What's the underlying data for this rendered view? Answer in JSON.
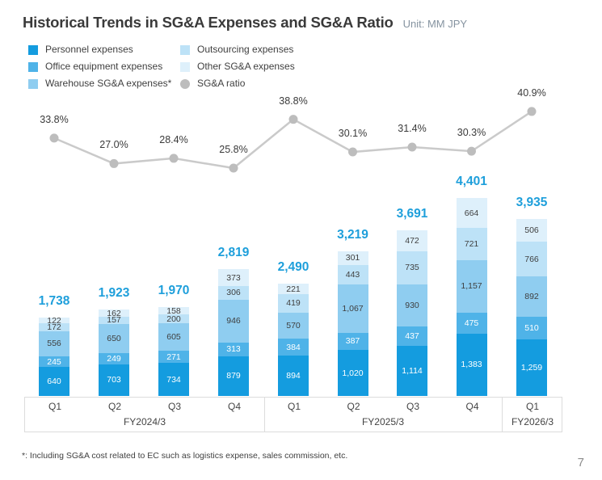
{
  "title": "Historical Trends in SG&A Expenses and SG&A Ratio",
  "unit_label": "Unit: MM JPY",
  "footnote": "*: Including SG&A cost related to EC such as logistics expense, sales commission, etc.",
  "page_number": "7",
  "colors": {
    "title_text": "#3A3A3A",
    "unit_text": "#8593A0",
    "total_label": "#1E9FDB",
    "axis_border": "#DCDCDC",
    "segment_dark_text": "#3F3F3F"
  },
  "legend": {
    "columns": [
      [
        {
          "label": "Personnel expenses",
          "color": "#149CDF",
          "shape": "square"
        },
        {
          "label": "Office equipment expenses",
          "color": "#4FB3E8",
          "shape": "square"
        },
        {
          "label": "Warehouse SG&A expenses*",
          "color": "#8FCDF0",
          "shape": "square"
        }
      ],
      [
        {
          "label": "Outsourcing expenses",
          "color": "#BDE2F7",
          "shape": "square"
        },
        {
          "label": "Other SG&A expenses",
          "color": "#DEF0FB",
          "shape": "square"
        },
        {
          "label": "SG&A ratio",
          "color": "#BDBDBD",
          "shape": "circle"
        }
      ]
    ]
  },
  "chart_data": {
    "type": "bar",
    "subtype": "stacked-bar-with-ratio-line",
    "title": "Historical Trends in SG&A Expenses and SG&A Ratio",
    "unit": "MM JPY",
    "legend_position": "top-left",
    "grid": false,
    "categories": [
      "Q1",
      "Q2",
      "Q3",
      "Q4",
      "Q1",
      "Q2",
      "Q3",
      "Q4",
      "Q1"
    ],
    "groups": [
      {
        "label": "FY2024/3",
        "span": 4
      },
      {
        "label": "FY2025/3",
        "span": 4
      },
      {
        "label": "FY2026/3",
        "span": 1
      }
    ],
    "series": [
      {
        "name": "Personnel expenses",
        "color": "#149CDF",
        "label_color": "#FFFFFF",
        "values": [
          640,
          703,
          734,
          879,
          894,
          1020,
          1114,
          1383,
          1259
        ]
      },
      {
        "name": "Office equipment expenses",
        "color": "#4FB3E8",
        "label_color": "#FFFFFF",
        "values": [
          245,
          249,
          271,
          313,
          384,
          387,
          437,
          475,
          510
        ]
      },
      {
        "name": "Warehouse SG&A expenses*",
        "color": "#8FCDF0",
        "label_color": "#3F3F3F",
        "values": [
          556,
          650,
          605,
          946,
          570,
          1067,
          930,
          1157,
          892
        ]
      },
      {
        "name": "Outsourcing expenses",
        "color": "#BDE2F7",
        "label_color": "#3F3F3F",
        "values": [
          172,
          157,
          200,
          306,
          419,
          443,
          735,
          721,
          766
        ]
      },
      {
        "name": "Other SG&A expenses",
        "color": "#DEF0FB",
        "label_color": "#3F3F3F",
        "values": [
          122,
          162,
          158,
          373,
          221,
          301,
          472,
          664,
          506
        ]
      }
    ],
    "totals": [
      1738,
      1923,
      1970,
      2819,
      2490,
      3219,
      3691,
      4401,
      3935
    ],
    "ratio_series": {
      "name": "SG&A ratio",
      "marker_color": "#BDBDBD",
      "line_color": "#CACACA",
      "values": [
        33.8,
        27.0,
        28.4,
        25.8,
        38.8,
        30.1,
        31.4,
        30.3,
        40.9
      ]
    }
  }
}
